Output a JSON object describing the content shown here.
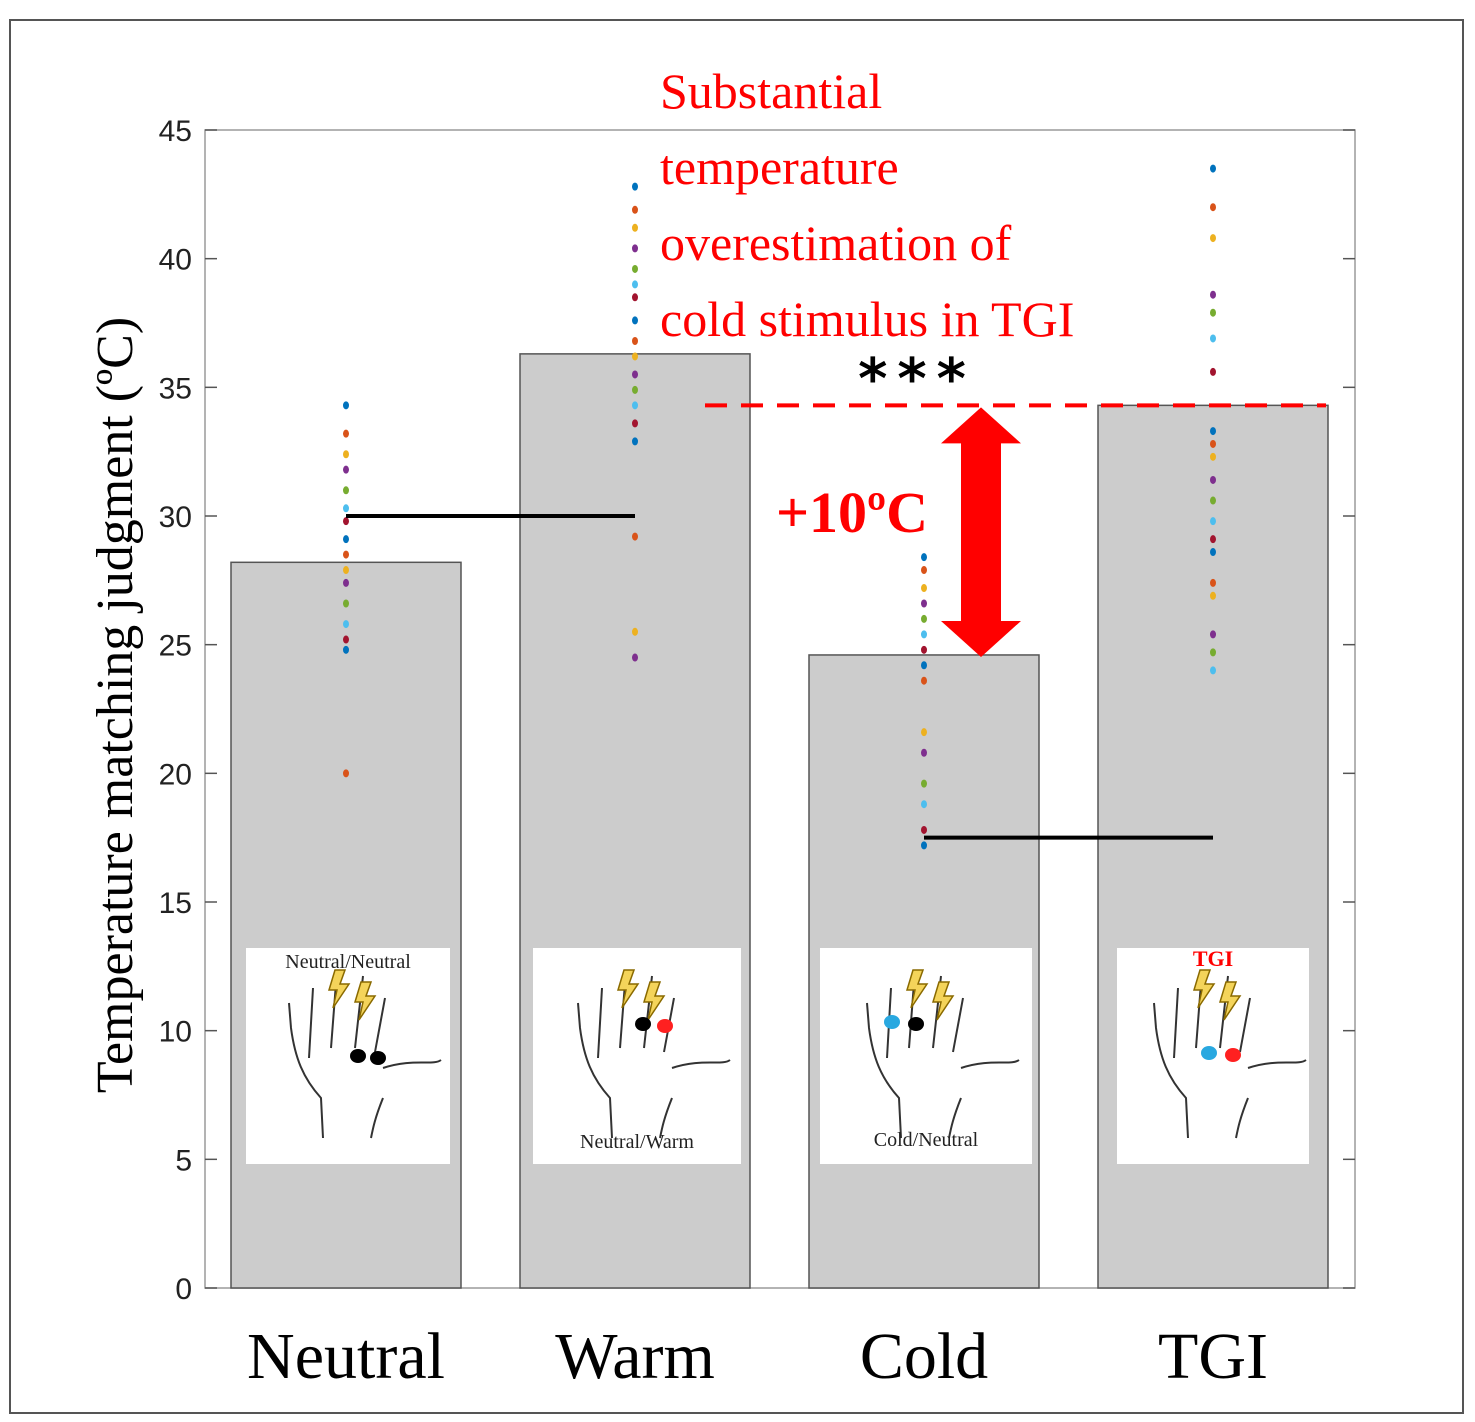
{
  "chart_data": {
    "type": "bar",
    "categories": [
      "Neutral",
      "Warm",
      "Cold",
      "TGI"
    ],
    "values": [
      28.2,
      36.3,
      24.6,
      34.3
    ],
    "ylabel": "Temperature matching judgment (ºC)",
    "xlabel": "",
    "ylim": [
      0,
      45
    ],
    "yticks": [
      0,
      5,
      10,
      15,
      20,
      25,
      30,
      35,
      40,
      45
    ],
    "bar_color": "#cccccc",
    "points": [
      [
        34.3,
        33.2,
        32.4,
        31.8,
        31.0,
        30.3,
        29.8,
        29.1,
        28.5,
        27.9,
        27.4,
        26.6,
        25.8,
        25.2,
        24.8,
        20.0
      ],
      [
        42.8,
        41.9,
        41.2,
        40.4,
        39.6,
        39.0,
        38.5,
        37.6,
        36.8,
        36.2,
        35.5,
        34.9,
        34.3,
        33.6,
        32.9,
        29.2,
        25.5,
        24.5
      ],
      [
        28.4,
        27.9,
        27.2,
        26.6,
        26.0,
        25.4,
        24.8,
        24.2,
        23.6,
        21.6,
        20.8,
        19.6,
        18.8,
        17.8,
        17.2
      ],
      [
        43.5,
        42.0,
        40.8,
        38.6,
        37.9,
        36.9,
        35.6,
        33.3,
        32.8,
        32.3,
        31.4,
        30.6,
        29.8,
        29.1,
        28.6,
        27.4,
        26.9,
        25.4,
        24.7,
        24.0
      ]
    ],
    "point_colors": [
      "#0072bd",
      "#d95319",
      "#edb120",
      "#7e2f8e",
      "#77ac30",
      "#4dbeee",
      "#a2142f"
    ],
    "comparisons": [
      {
        "from": 0,
        "to": 1,
        "y": 30.0
      },
      {
        "from": 2,
        "to": 3,
        "y": 17.5
      }
    ],
    "reference_line": 34.3,
    "difference_label": "+10ºC",
    "significance": "***",
    "annotation": [
      "Substantial",
      "temperature",
      "overestimation of",
      "cold stimulus in TGI"
    ],
    "insets": [
      "Neutral/Neutral",
      "Neutral/Warm",
      "Cold/Neutral",
      "TGI"
    ]
  }
}
